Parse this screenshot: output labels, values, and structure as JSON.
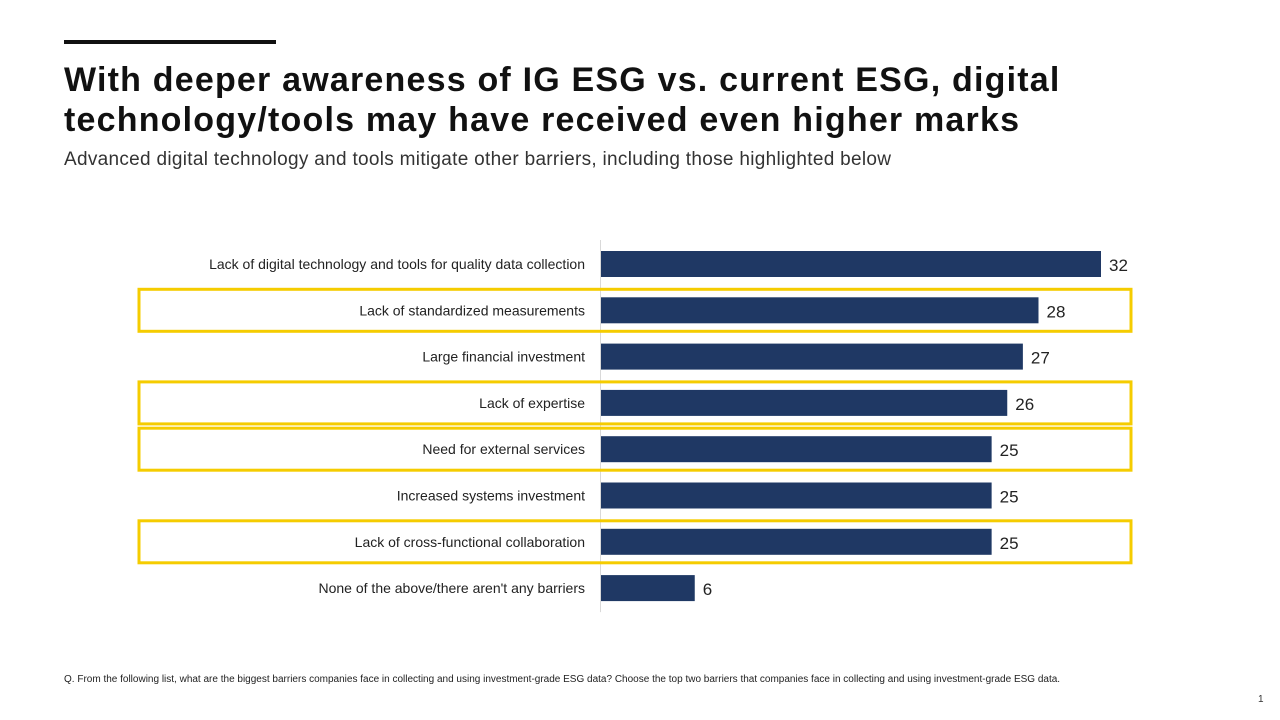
{
  "slide": {
    "title_line1": "With deeper awareness of IG ESG vs. current ESG, digital",
    "title_line2": "technology/tools may have received even higher marks",
    "subtitle": "Advanced digital technology and tools mitigate other barriers, including those highlighted below",
    "footnote": "Q. From the following list, what are the biggest barriers companies face in collecting and using investment-grade ESG data? Choose the top two barriers that companies face in collecting and using investment-grade ESG data.",
    "page_number": "1"
  },
  "colors": {
    "bar": "#1F3864",
    "highlight": "#F5CC00",
    "axis": "#D9D9D9"
  },
  "chart_data": {
    "type": "bar",
    "orientation": "horizontal",
    "categories": [
      "Lack of digital technology and tools for quality data collection",
      "Lack of standardized measurements",
      "Large financial investment",
      "Lack of expertise",
      "Need for external services",
      "Increased systems investment",
      "Lack of cross-functional collaboration",
      "None of the above/there aren't any barriers"
    ],
    "values": [
      32,
      28,
      27,
      26,
      25,
      25,
      25,
      6
    ],
    "data_labels": [
      "32",
      "28",
      "27",
      "26",
      "25",
      "25",
      "25",
      "6"
    ],
    "highlighted": [
      false,
      true,
      false,
      true,
      true,
      false,
      true,
      false
    ],
    "xlim": [
      0,
      32
    ],
    "grid": false,
    "legend": "none"
  }
}
